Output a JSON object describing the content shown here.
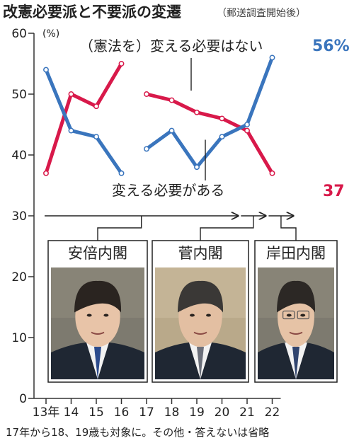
{
  "chart_data": {
    "type": "line",
    "title": "改憲必要派と不要派の変遷",
    "subtitle": "（郵送調査開始後）",
    "ylabel": "(%)",
    "ylim": [
      0,
      60
    ],
    "yticks": [
      "0",
      "10",
      "20",
      "30",
      "40",
      "50",
      "60"
    ],
    "categories": [
      "13年",
      "14",
      "15",
      "16",
      "17",
      "18",
      "19",
      "20",
      "21",
      "22"
    ],
    "x": [
      13,
      14,
      15,
      16,
      17,
      18,
      19,
      20,
      21,
      22
    ],
    "grid": false,
    "series": [
      {
        "name": "（憲法を）変える必要はない",
        "color": "#d8194a",
        "segments": [
          {
            "x": [
              13,
              14,
              15,
              16
            ],
            "values": [
              37,
              50,
              48,
              55
            ]
          },
          {
            "x": [
              17,
              18,
              19,
              20,
              21,
              22
            ],
            "values": [
              50,
              49,
              47,
              46,
              44,
              37
            ]
          }
        ]
      },
      {
        "name": "変える必要がある",
        "color": "#3a75bd",
        "segments": [
          {
            "x": [
              13,
              14,
              15,
              16
            ],
            "values": [
              54,
              44,
              43,
              37
            ]
          },
          {
            "x": [
              17,
              18,
              19,
              20,
              21,
              22
            ],
            "values": [
              41,
              44,
              38,
              43,
              45,
              56
            ]
          }
        ]
      }
    ],
    "end_labels": {
      "blue": "56%",
      "red": "37"
    },
    "cabinets": [
      {
        "name": "安倍内閣",
        "from": 13,
        "to": 20.7
      },
      {
        "name": "菅内閣",
        "from": 20.7,
        "to": 21.8
      },
      {
        "name": "岸田内閣",
        "from": 21.8,
        "to": 22.9
      }
    ],
    "note": "17年から18、19歳も対象に。その他・答えないは省略"
  }
}
